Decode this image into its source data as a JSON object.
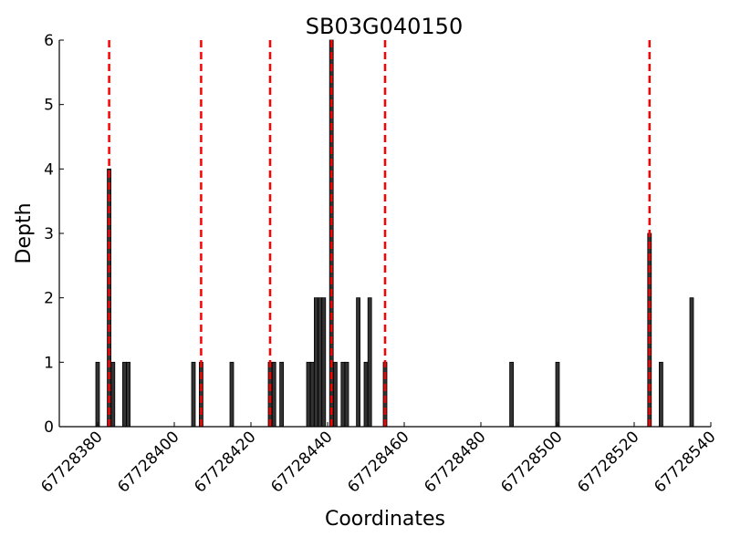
{
  "chart_data": {
    "type": "bar",
    "title": "SB03G040150",
    "xlabel": "Coordinates",
    "ylabel": "Depth",
    "xlim": [
      67728370,
      67728540
    ],
    "ylim": [
      0,
      6
    ],
    "xticks": [
      67728380,
      67728400,
      67728420,
      67728440,
      67728460,
      67728480,
      67728500,
      67728520,
      67728540
    ],
    "xtick_labels": [
      "67728380",
      "67728400",
      "67728420",
      "67728440",
      "67728460",
      "67728480",
      "67728500",
      "67728520",
      "67728540"
    ],
    "yticks": [
      0,
      1,
      2,
      3,
      4,
      5,
      6
    ],
    "ytick_labels": [
      "0",
      "1",
      "2",
      "3",
      "4",
      "5",
      "6"
    ],
    "bar_width": 1,
    "bars": [
      {
        "x": 67728380,
        "y": 1
      },
      {
        "x": 67728383,
        "y": 4
      },
      {
        "x": 67728384,
        "y": 1
      },
      {
        "x": 67728387,
        "y": 1
      },
      {
        "x": 67728388,
        "y": 1
      },
      {
        "x": 67728405,
        "y": 1
      },
      {
        "x": 67728407,
        "y": 1
      },
      {
        "x": 67728415,
        "y": 1
      },
      {
        "x": 67728425,
        "y": 1
      },
      {
        "x": 67728426,
        "y": 1
      },
      {
        "x": 67728428,
        "y": 1
      },
      {
        "x": 67728435,
        "y": 1
      },
      {
        "x": 67728436,
        "y": 1
      },
      {
        "x": 67728437,
        "y": 2
      },
      {
        "x": 67728438,
        "y": 2
      },
      {
        "x": 67728439,
        "y": 2
      },
      {
        "x": 67728441,
        "y": 6
      },
      {
        "x": 67728442,
        "y": 1
      },
      {
        "x": 67728444,
        "y": 1
      },
      {
        "x": 67728445,
        "y": 1
      },
      {
        "x": 67728448,
        "y": 2
      },
      {
        "x": 67728450,
        "y": 1
      },
      {
        "x": 67728451,
        "y": 2
      },
      {
        "x": 67728455,
        "y": 1
      },
      {
        "x": 67728488,
        "y": 1
      },
      {
        "x": 67728500,
        "y": 1
      },
      {
        "x": 67728524,
        "y": 3
      },
      {
        "x": 67728527,
        "y": 1
      },
      {
        "x": 67728535,
        "y": 2
      }
    ],
    "markers": [
      67728383,
      67728407,
      67728425,
      67728441,
      67728455,
      67728524
    ],
    "bar_color": "#333333",
    "bar_edge_color": "#000000",
    "marker_color": "#ff0000",
    "grid": false,
    "legend": false
  }
}
